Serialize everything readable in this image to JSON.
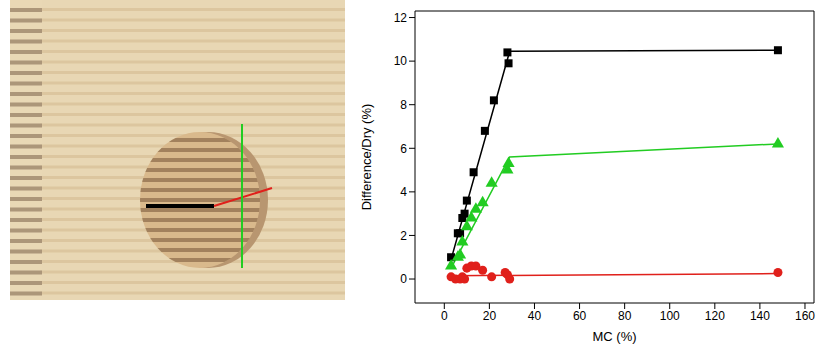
{
  "chart_data": {
    "type": "scatter",
    "x_label": "MC (%)",
    "y_label": "Difference/Dry (%)",
    "xlim": [
      -13,
      164
    ],
    "xticks": [
      0,
      20,
      40,
      60,
      80,
      100,
      120,
      140,
      160
    ],
    "ylim": [
      -1.1,
      12.3
    ],
    "yticks": [
      0,
      2,
      4,
      6,
      8,
      10,
      12
    ],
    "grid": false,
    "series": [
      {
        "type": "scatter",
        "color": "#000000",
        "marker": "square",
        "x": [
          3,
          6,
          7,
          8,
          9,
          10,
          13,
          18,
          22,
          28,
          28.5,
          148
        ],
        "values": [
          1.0,
          2.1,
          2.1,
          2.8,
          3.0,
          3.6,
          4.9,
          6.8,
          8.2,
          10.4,
          9.9,
          10.5
        ]
      },
      {
        "type": "line",
        "color": "#000000",
        "marker": "none",
        "x": [
          3,
          29,
          148
        ],
        "values": [
          0.9,
          10.45,
          10.5
        ]
      },
      {
        "type": "scatter",
        "color": "#22cc22",
        "marker": "triangle",
        "x": [
          3,
          6,
          7,
          8,
          10,
          12,
          14,
          17,
          21,
          28,
          28.5,
          148
        ],
        "values": [
          0.6,
          1.0,
          1.1,
          1.7,
          2.4,
          2.8,
          3.2,
          3.5,
          4.4,
          5.0,
          5.3,
          6.2
        ]
      },
      {
        "type": "line",
        "color": "#22cc22",
        "marker": "none",
        "x": [
          3,
          29,
          148
        ],
        "values": [
          0.5,
          5.6,
          6.2
        ]
      },
      {
        "type": "scatter",
        "color": "#e0201b",
        "marker": "circle",
        "x": [
          3,
          5,
          7,
          8,
          9,
          10,
          12,
          14,
          17,
          21,
          27,
          28,
          29,
          148
        ],
        "values": [
          0.1,
          0.0,
          0.0,
          0.1,
          0.0,
          0.5,
          0.6,
          0.6,
          0.4,
          0.1,
          0.3,
          0.2,
          0.0,
          0.3
        ]
      },
      {
        "type": "line",
        "color": "#e0201b",
        "marker": "none",
        "x": [
          3,
          148
        ],
        "values": [
          0.15,
          0.25
        ]
      }
    ]
  }
}
